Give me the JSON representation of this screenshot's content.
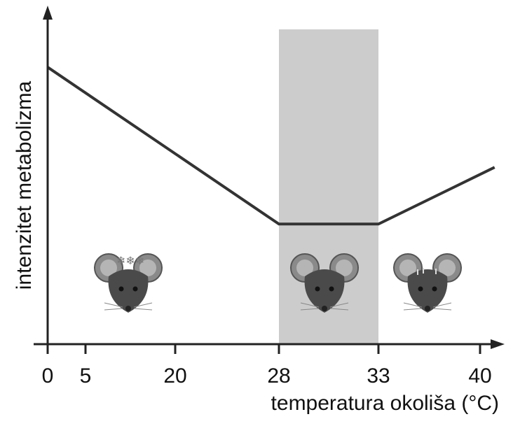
{
  "chart_data": {
    "type": "line",
    "x_label": "temperatura okoliša (°C)",
    "y_label": "intenzitet metabolizma",
    "x": [
      0,
      28,
      33,
      41
    ],
    "series": [
      {
        "values": [
          83,
          36,
          36,
          53
        ],
        "color": "#333333"
      }
    ],
    "shaded_region": [
      28,
      33
    ],
    "shaded_color": "#cccccc",
    "ylim": [
      0,
      100
    ],
    "xticks": [
      0,
      5,
      20,
      28,
      33,
      40
    ]
  }
}
